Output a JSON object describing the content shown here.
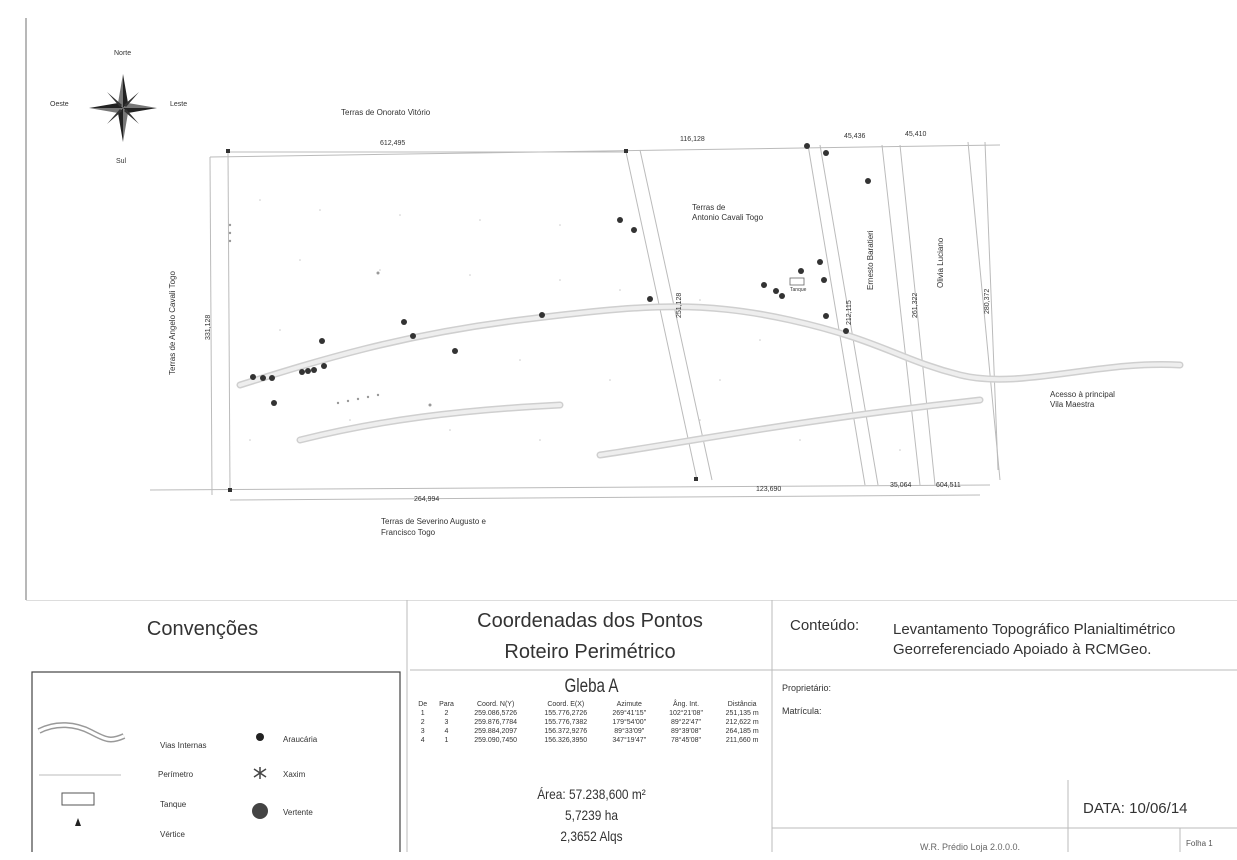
{
  "map": {
    "compass": {
      "north": "Norte",
      "south": "Sul",
      "east": "Leste",
      "west": "Oeste"
    },
    "labels": {
      "onorato": "Terras de Onorato Vitório",
      "antonio": "Terras de\nAntonio Cavali Togo",
      "angelo": "Terras de Angelo Cavali Togo",
      "severino": "Terras de Severino Augusto e\nFrancisco Togo",
      "ernesto": "Ernesto Baratieri",
      "olivia": "Olivia Luciano",
      "acesso": "Acesso à principal\nVila Maestra",
      "tanque": "Tanque"
    },
    "dimensions": {
      "d1": "612,495",
      "d2": "116,128",
      "d3": "45,436",
      "d4": "45,410",
      "d5": "264,994",
      "d6": "123,690",
      "d7": "35,064",
      "d8": "604,511",
      "d9": "331,128",
      "d10": "251,128",
      "d11": "212,115",
      "d12": "261,322",
      "d13": "280,372"
    }
  },
  "legend": {
    "title": "Convenções",
    "items": {
      "vias": "Vias Internas",
      "perimetro": "Perímetro",
      "tanque": "Tanque",
      "vertice": "Vértice",
      "araucaria": "Araucária",
      "xaxim": "Xaxim",
      "vertente": "Vertente"
    }
  },
  "coordinates": {
    "title_line1": "Coordenadas dos Pontos",
    "title_line2": "Roteiro Perimétrico",
    "gleba_title": "Gleba A",
    "headers": [
      "De",
      "Para",
      "Coord. N(Y)",
      "Coord. E(X)",
      "Azimute",
      "Âng. Int.",
      "Distância"
    ],
    "rows": [
      [
        "1",
        "2",
        "259.086,5726",
        "155.776,2726",
        "269°41'15\"",
        "102°21'08\"",
        "251,135 m"
      ],
      [
        "2",
        "3",
        "259.876,7784",
        "155.776,7382",
        "179°54'00\"",
        "89°22'47\"",
        "212,622 m"
      ],
      [
        "3",
        "4",
        "259.884,2097",
        "156.372,9276",
        "89°33'09\"",
        "89°39'08\"",
        "264,185 m"
      ],
      [
        "4",
        "1",
        "259.090,7450",
        "156.326,3950",
        "347°19'47\"",
        "78°45'08\"",
        "211,660 m"
      ]
    ],
    "area_m2": "Área: 57.238,600 m²",
    "area_ha": "5,7239 ha",
    "area_alq": "2,3652 Alqs"
  },
  "title_block": {
    "content_label": "Conteúdo:",
    "content_line1": "Levantamento Topográfico Planialtimétrico",
    "content_line2": "Georreferenciado Apoiado à RCMGeo.",
    "proprietario": "Proprietário:",
    "matricula": "Matrícula:",
    "data": "DATA: 10/06/14",
    "folha": "Folha 1",
    "footer": "W.R. Prédio Loja 2.0.0.0."
  }
}
